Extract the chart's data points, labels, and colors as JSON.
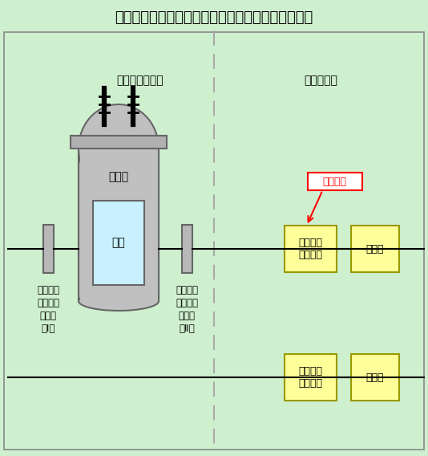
{
  "title": "伊方発電所１号機　中間領域中性子束検出器概略図",
  "bg_color": "#cff0cf",
  "reactor_container_label": "原子炉格納容器",
  "central_control_label": "中央制御室",
  "reactor_label": "原子炉",
  "fuel_label": "燃料",
  "detector1_label": "中間領域\n中性子束\n検出器\n（Ⅰ）",
  "detector2_label": "中間領域\n中性子束\n検出器\n（Ⅱ）",
  "signal_proc_label": "信号処理\nユニット",
  "indicator_label": "指示計",
  "annotation_label": "当該箇所",
  "vessel_gray": "#c0c0c0",
  "vessel_edge": "#666666",
  "fuel_fill": "#c8f0ff",
  "box_fill": "#ffff99",
  "box_edge": "#999900",
  "divider_color": "#aaaaaa",
  "border_color": "#888888",
  "wire_color": "#000000"
}
